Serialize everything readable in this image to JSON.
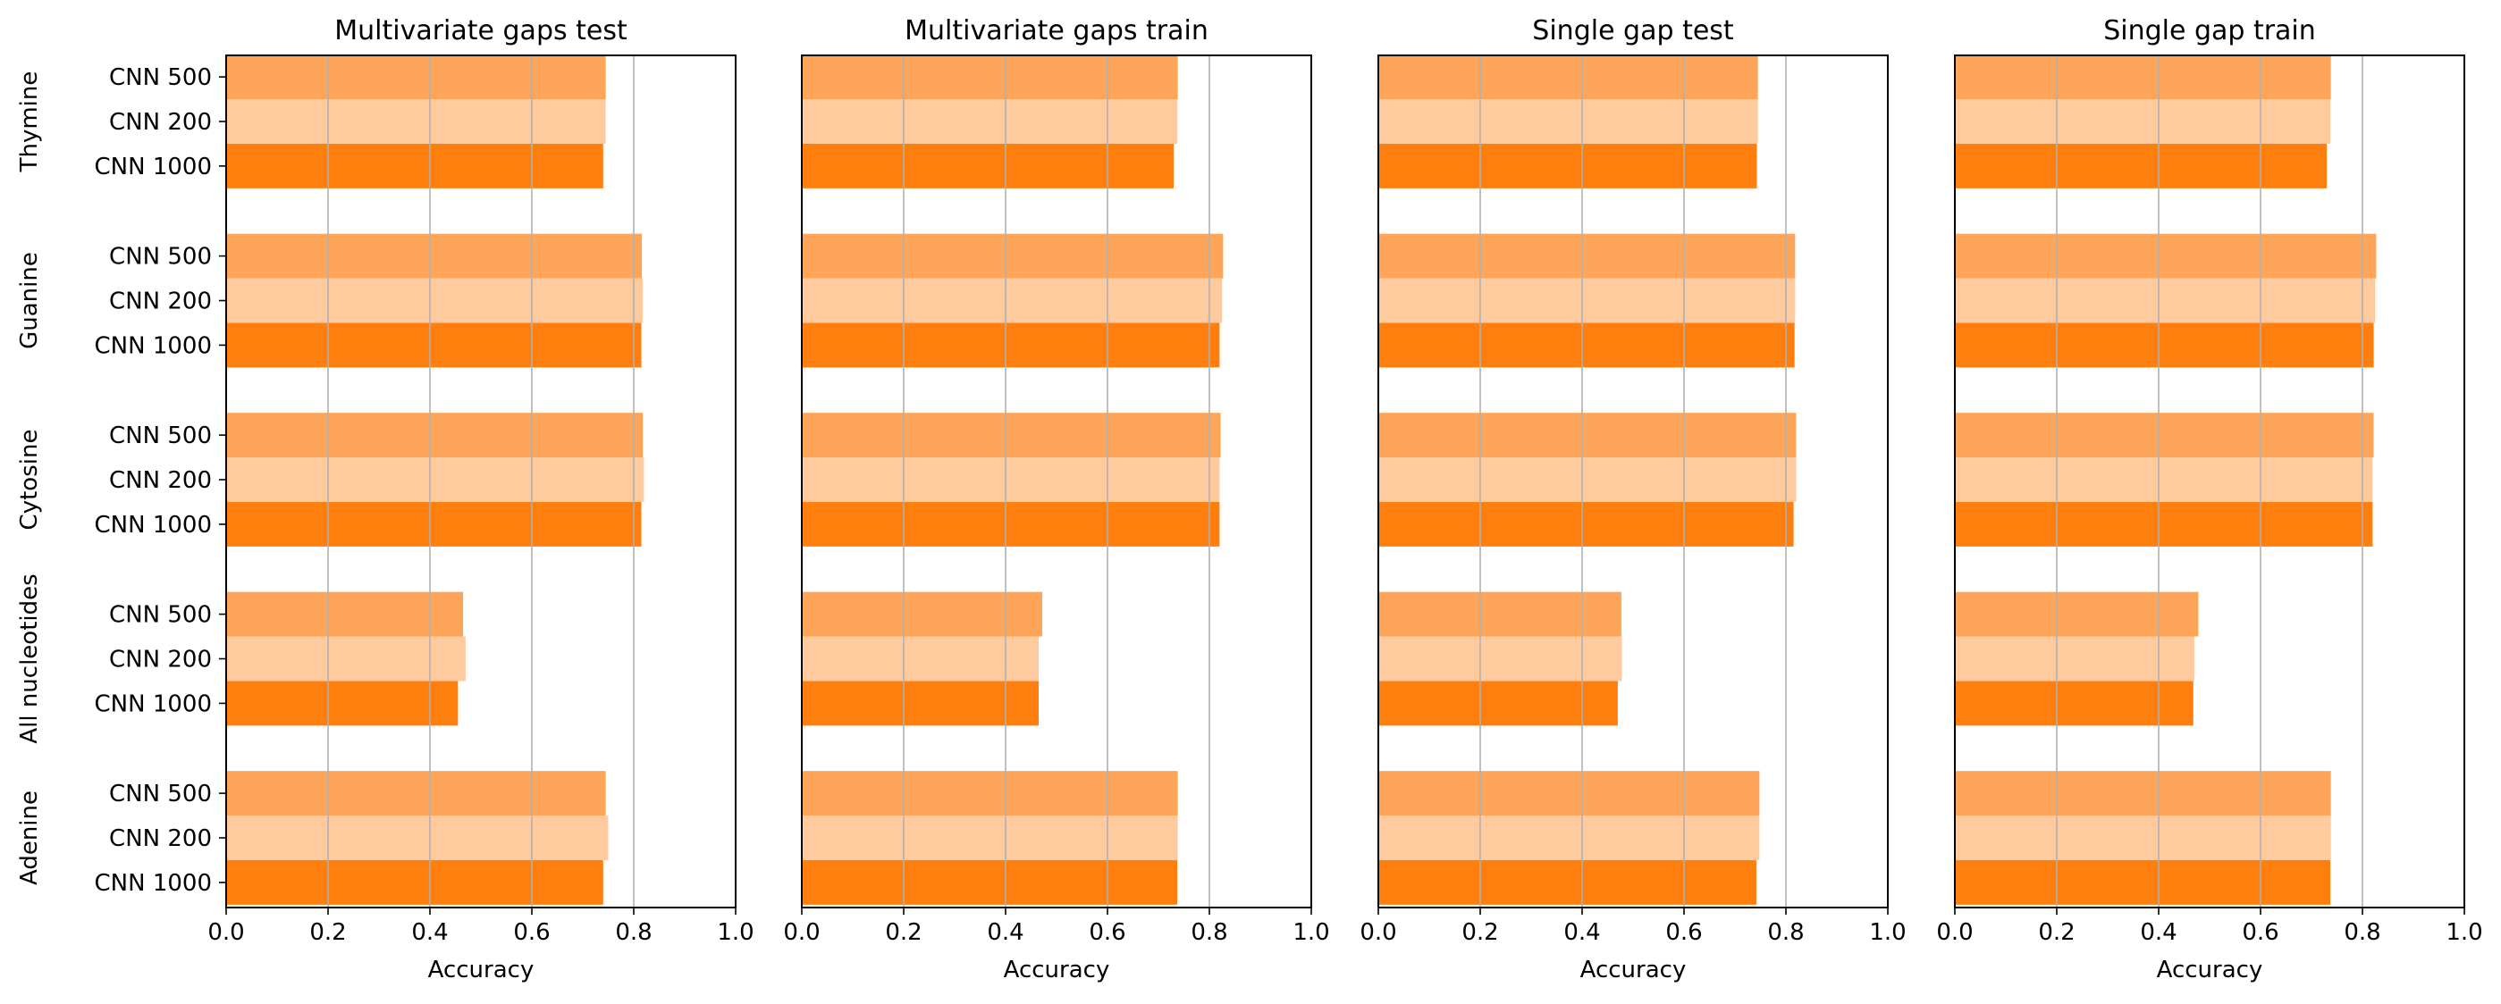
{
  "chart_data": {
    "type": "bar",
    "orientation": "horizontal",
    "groups": [
      "Adenine",
      "All nucleotides",
      "Cytosine",
      "Guanine",
      "Thymine"
    ],
    "bar_labels": [
      "CNN 1000",
      "CNN 200",
      "CNN 500"
    ],
    "series_colors": {
      "CNN 1000": "#ff7f0e",
      "CNN 200": "#ffca9e",
      "CNN 500": "#ffa55a"
    },
    "xlim": [
      0,
      1
    ],
    "x_ticks": [
      "0.0",
      "0.2",
      "0.4",
      "0.6",
      "0.8",
      "1.0"
    ],
    "grid": "x-axis vertical lines",
    "xlabel": "Accuracy",
    "panels": [
      {
        "title": "Multivariate gaps test",
        "values": {
          "Adenine": {
            "CNN 1000": 0.74,
            "CNN 200": 0.75,
            "CNN 500": 0.745
          },
          "All nucleotides": {
            "CNN 1000": 0.455,
            "CNN 200": 0.47,
            "CNN 500": 0.465
          },
          "Cytosine": {
            "CNN 1000": 0.815,
            "CNN 200": 0.82,
            "CNN 500": 0.818
          },
          "Guanine": {
            "CNN 1000": 0.815,
            "CNN 200": 0.818,
            "CNN 500": 0.816
          },
          "Thymine": {
            "CNN 1000": 0.74,
            "CNN 200": 0.745,
            "CNN 500": 0.745
          }
        }
      },
      {
        "title": "Multivariate gaps train",
        "values": {
          "Adenine": {
            "CNN 1000": 0.737,
            "CNN 200": 0.738,
            "CNN 500": 0.738
          },
          "All nucleotides": {
            "CNN 1000": 0.465,
            "CNN 200": 0.465,
            "CNN 500": 0.472
          },
          "Cytosine": {
            "CNN 1000": 0.82,
            "CNN 200": 0.82,
            "CNN 500": 0.822
          },
          "Guanine": {
            "CNN 1000": 0.82,
            "CNN 200": 0.825,
            "CNN 500": 0.827
          },
          "Thymine": {
            "CNN 1000": 0.73,
            "CNN 200": 0.737,
            "CNN 500": 0.738
          }
        }
      },
      {
        "title": "Single gap test",
        "values": {
          "Adenine": {
            "CNN 1000": 0.742,
            "CNN 200": 0.748,
            "CNN 500": 0.748
          },
          "All nucleotides": {
            "CNN 1000": 0.47,
            "CNN 200": 0.478,
            "CNN 500": 0.477
          },
          "Cytosine": {
            "CNN 1000": 0.815,
            "CNN 200": 0.82,
            "CNN 500": 0.82
          },
          "Guanine": {
            "CNN 1000": 0.817,
            "CNN 200": 0.818,
            "CNN 500": 0.818
          },
          "Thymine": {
            "CNN 1000": 0.743,
            "CNN 200": 0.745,
            "CNN 500": 0.745
          }
        }
      },
      {
        "title": "Single gap train",
        "values": {
          "Adenine": {
            "CNN 1000": 0.737,
            "CNN 200": 0.738,
            "CNN 500": 0.738
          },
          "All nucleotides": {
            "CNN 1000": 0.468,
            "CNN 200": 0.47,
            "CNN 500": 0.478
          },
          "Cytosine": {
            "CNN 1000": 0.82,
            "CNN 200": 0.82,
            "CNN 500": 0.822
          },
          "Guanine": {
            "CNN 1000": 0.822,
            "CNN 200": 0.825,
            "CNN 500": 0.827
          },
          "Thymine": {
            "CNN 1000": 0.73,
            "CNN 200": 0.737,
            "CNN 500": 0.738
          }
        }
      }
    ]
  }
}
